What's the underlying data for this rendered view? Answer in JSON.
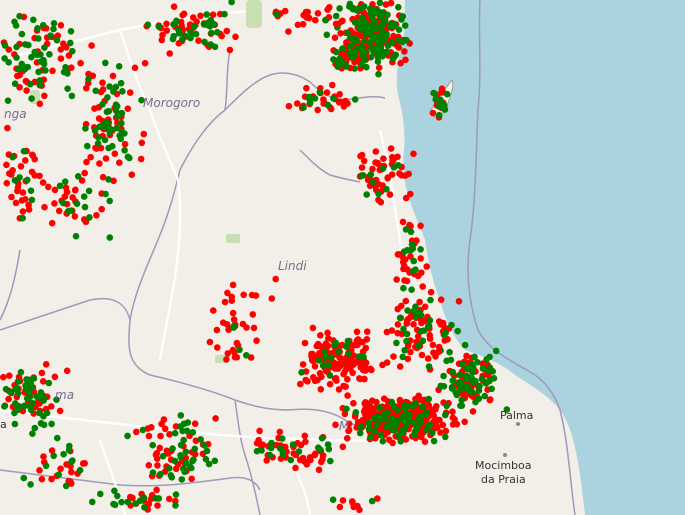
{
  "map": {
    "colors": {
      "land": "#f2efe9",
      "ocean": "#aad3df",
      "border": "#9e9ab8",
      "road": "#ffffff",
      "park": "#c8dfb4",
      "marker_red": "#ff0000",
      "marker_green": "#008000"
    },
    "labels": {
      "morogoro": "Morogoro",
      "lindi": "Lindi",
      "tanga_partial": "nga",
      "mtwara_partial": "ma",
      "masasi_partial": "M",
      "palma": "Palma",
      "mocimboa_line1": "Mocimboa",
      "mocimboa_line2": "da Praia",
      "left_edge_partial": "a"
    },
    "legend_colors": [
      "red",
      "green"
    ]
  }
}
